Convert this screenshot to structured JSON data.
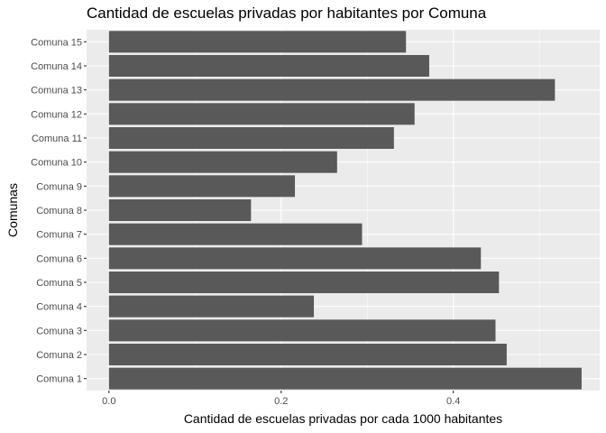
{
  "chart_data": {
    "type": "bar",
    "orientation": "horizontal",
    "title": "Cantidad de escuelas privadas por habitantes por Comuna",
    "xlabel": "Cantidad de escuelas privadas por cada 1000 habitantes",
    "ylabel": "Comunas",
    "xlim": [
      -0.026,
      0.57
    ],
    "x_ticks": [
      0.0,
      0.2,
      0.4
    ],
    "x_tick_labels": [
      "0.0",
      "0.2",
      "0.4"
    ],
    "categories": [
      "Comuna 1",
      "Comuna 2",
      "Comuna 3",
      "Comuna 4",
      "Comuna 5",
      "Comuna 6",
      "Comuna 7",
      "Comuna 8",
      "Comuna 9",
      "Comuna 10",
      "Comuna 11",
      "Comuna 12",
      "Comuna 13",
      "Comuna 14",
      "Comuna 15"
    ],
    "values": [
      0.549,
      0.462,
      0.449,
      0.238,
      0.453,
      0.432,
      0.294,
      0.165,
      0.216,
      0.265,
      0.331,
      0.355,
      0.518,
      0.372,
      0.345
    ],
    "bar_color": "#595959",
    "panel_background": "#ebebeb",
    "grid": true,
    "legend": "none"
  }
}
